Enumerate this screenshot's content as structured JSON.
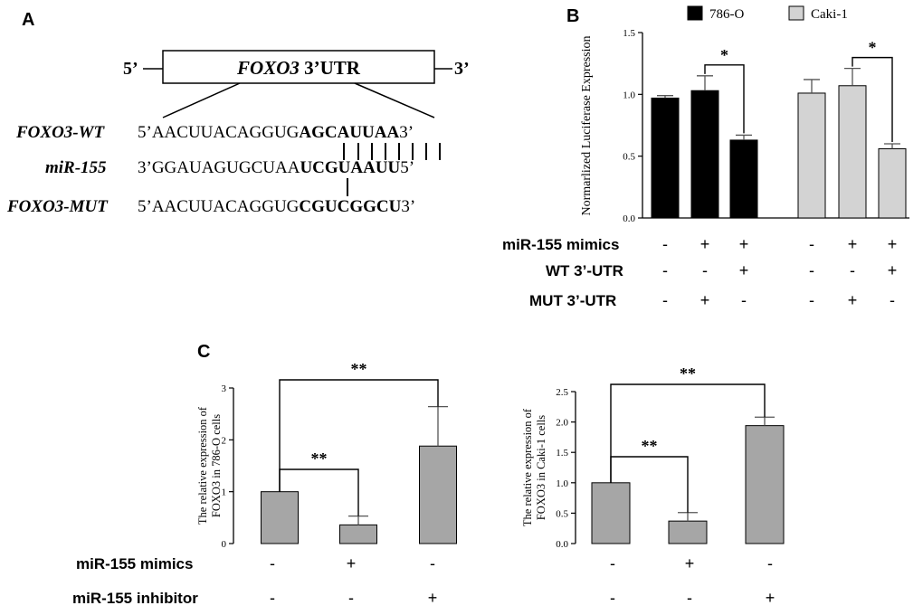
{
  "panels": {
    "a": "A",
    "b": "B",
    "c": "C"
  },
  "construct": {
    "five_prime": "5’",
    "three_prime": "3’",
    "gene": "FOXO3",
    "utr": " 3’UTR"
  },
  "sequences": [
    {
      "label": "FOXO3-WT",
      "prefix": "5’",
      "plain": "AACUUACAGGUG",
      "bold": "AGCAUUAA",
      "suffix": "3’"
    },
    {
      "label": "miR-155",
      "prefix": "3’",
      "plain": "GGAUAGUGCUAA",
      "bold": "UCGUAAUU",
      "suffix": "5’"
    },
    {
      "label": "FOXO3-MUT",
      "prefix": "5’",
      "plain": "AACUUACAGGUG",
      "bold": "CGUCGGCU",
      "suffix": "3’"
    }
  ],
  "conditions_b": {
    "rows": [
      {
        "label": "miR-155 mimics",
        "values": [
          "-",
          "+",
          "+",
          "-",
          "+",
          "+"
        ]
      },
      {
        "label": "WT 3’-UTR",
        "values": [
          "-",
          "-",
          "+",
          "-",
          "-",
          "+"
        ]
      },
      {
        "label": "MUT 3’-UTR",
        "values": [
          "-",
          "+",
          "-",
          "-",
          "+",
          "-"
        ]
      }
    ]
  },
  "conditions_c": {
    "rows": [
      {
        "label": "miR-155 mimics",
        "values": [
          "-",
          "+",
          "-"
        ]
      },
      {
        "label": "miR-155 inhibitor",
        "values": [
          "-",
          "-",
          "+"
        ]
      }
    ]
  },
  "chart_data": [
    {
      "type": "bar",
      "panel": "B",
      "title": "",
      "xlabel": "",
      "ylabel": "Normarlized Luciferase Expression",
      "ylim": [
        0,
        1.5
      ],
      "yticks": [
        "0.0",
        "0.5",
        "1.0",
        "1.5"
      ],
      "legend": [
        {
          "name": "786-O",
          "color": "#000000"
        },
        {
          "name": "Caki-1",
          "color": "#d3d3d3"
        }
      ],
      "series": [
        {
          "name": "786-O",
          "values": [
            0.97,
            1.03,
            0.63
          ],
          "errors": [
            0.02,
            0.12,
            0.04
          ],
          "color": "#000000"
        },
        {
          "name": "Caki-1",
          "values": [
            1.01,
            1.07,
            0.56
          ],
          "errors": [
            0.11,
            0.14,
            0.04
          ],
          "color": "#d3d3d3"
        }
      ],
      "significance": [
        {
          "series": "786-O",
          "between": [
            1,
            2
          ],
          "label": "*"
        },
        {
          "series": "Caki-1",
          "between": [
            1,
            2
          ],
          "label": "*"
        }
      ]
    },
    {
      "type": "bar",
      "panel": "C-left",
      "title": "",
      "xlabel": "",
      "ylabel": "The relative expression of FOXO3 in 786-O cells",
      "ylim": [
        0,
        3
      ],
      "yticks": [
        "0",
        "1",
        "2",
        "3"
      ],
      "values": [
        1.0,
        0.36,
        1.88
      ],
      "errors": [
        0,
        0.17,
        0.76
      ],
      "color": "#a6a6a6",
      "significance": [
        {
          "between": [
            0,
            2
          ],
          "label": "**",
          "level": "high"
        },
        {
          "between": [
            0,
            1
          ],
          "label": "**",
          "level": "low"
        }
      ]
    },
    {
      "type": "bar",
      "panel": "C-right",
      "title": "",
      "xlabel": "",
      "ylabel": "The relative expression of FOXO3 in Caki-1 cells",
      "ylim": [
        0,
        2.5
      ],
      "yticks": [
        "0.0",
        "0.5",
        "1.0",
        "1.5",
        "2.0",
        "2.5"
      ],
      "values": [
        1.0,
        0.37,
        1.94
      ],
      "errors": [
        0,
        0.14,
        0.14
      ],
      "color": "#a6a6a6",
      "significance": [
        {
          "between": [
            0,
            2
          ],
          "label": "**",
          "level": "high"
        },
        {
          "between": [
            0,
            1
          ],
          "label": "**",
          "level": "low"
        }
      ]
    }
  ]
}
